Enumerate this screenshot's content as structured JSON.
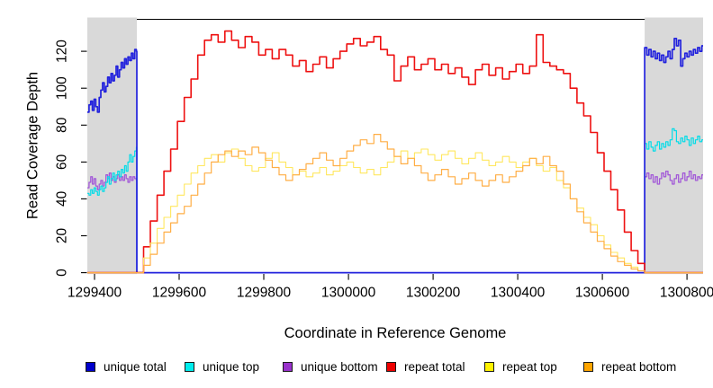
{
  "chart_data": {
    "type": "line",
    "title": "",
    "xlabel": "Coordinate in Reference Genome",
    "ylabel": "Read Coverage Depth",
    "xlim": [
      1299383,
      1300838
    ],
    "ylim": [
      0,
      137.6
    ],
    "xticks": [
      1299400,
      1299600,
      1299800,
      1300000,
      1300200,
      1300400,
      1300600,
      1300800
    ],
    "yticks": [
      0,
      20,
      40,
      60,
      80,
      100,
      120
    ],
    "grid": false,
    "legend_position": "bottom",
    "background_color": "#ffffff",
    "masked_region_color": "#d9d9d9",
    "masked_regions": [
      [
        1299383,
        1299500
      ],
      [
        1300700,
        1300838
      ]
    ],
    "series": [
      {
        "name": "unique total",
        "line_color": "#2222dd",
        "legend_color": "#0000cc",
        "segments": [
          {
            "x0": 1299383,
            "dx": 4,
            "v": [
              87,
              91,
              93,
              88,
              94,
              90,
              87,
              95,
              99,
              103,
              98,
              101,
              106,
              103,
              108,
              104,
              107,
              112,
              106,
              110,
              114,
              111,
              116,
              113,
              117,
              115,
              119,
              116,
              121,
              120
            ]
          },
          {
            "x0": 1299500,
            "dx": 1200,
            "v": [
              0,
              0
            ]
          },
          {
            "x0": 1300700,
            "dx": 5,
            "v": [
              122,
              118,
              121,
              117,
              120,
              116,
              119,
              115,
              118,
              114,
              117,
              120,
              116,
              121,
              127,
              123,
              126,
              112,
              116,
              119,
              117,
              120,
              118,
              121,
              119,
              122,
              120,
              123
            ]
          }
        ]
      },
      {
        "name": "unique top",
        "line_color": "#00dce8",
        "legend_color": "#00eeee",
        "segments": [
          {
            "x0": 1299383,
            "dx": 4,
            "v": [
              43,
              42,
              45,
              43,
              46,
              44,
              42,
              45,
              47,
              44,
              46,
              49,
              52,
              48,
              51,
              54,
              50,
              53,
              55,
              52,
              56,
              54,
              58,
              55,
              60,
              64,
              60,
              63,
              66,
              68
            ]
          },
          {
            "x0": 1299500,
            "dx": 1200,
            "v": [
              0,
              0
            ]
          },
          {
            "x0": 1300700,
            "dx": 5,
            "v": [
              70,
              67,
              71,
              68,
              66,
              69,
              71,
              67,
              70,
              68,
              71,
              69,
              72,
              78,
              77,
              71,
              70,
              73,
              71,
              74,
              72,
              69,
              73,
              70,
              72,
              74,
              71,
              72
            ]
          }
        ]
      },
      {
        "name": "unique bottom",
        "line_color": "#a259d8",
        "legend_color": "#9932cc",
        "segments": [
          {
            "x0": 1299383,
            "dx": 4,
            "v": [
              46,
              49,
              52,
              48,
              51,
              47,
              45,
              48,
              50,
              47,
              49,
              53,
              51,
              54,
              50,
              52,
              49,
              51,
              53,
              50,
              52,
              50,
              53,
              51,
              49,
              52,
              50,
              52,
              51,
              50
            ]
          },
          {
            "x0": 1299500,
            "dx": 1200,
            "v": [
              0,
              0
            ]
          },
          {
            "x0": 1300700,
            "dx": 5,
            "v": [
              52,
              54,
              51,
              53,
              49,
              52,
              48,
              51,
              54,
              52,
              55,
              53,
              50,
              48,
              51,
              53,
              49,
              51,
              54,
              50,
              52,
              55,
              51,
              53,
              50,
              52,
              51,
              53
            ]
          }
        ]
      },
      {
        "name": "repeat total",
        "line_color": "#ee1111",
        "legend_color": "#ee0000",
        "segments": [
          {
            "x0": 1299383,
            "dx": 117,
            "v": [
              0,
              0
            ]
          },
          {
            "x0": 1299500,
            "dx": 16,
            "v": [
              0,
              14,
              28,
              42,
              55,
              67,
              82,
              95,
              105,
              118,
              126,
              129,
              125,
              131,
              126,
              122,
              128,
              125,
              118,
              121,
              116,
              121,
              118,
              112,
              115,
              109,
              113,
              117,
              111,
              116,
              120,
              124,
              127,
              123,
              125,
              128,
              121,
              118,
              104,
              112,
              117,
              110,
              113,
              116,
              110,
              113,
              108,
              111,
              106,
              102,
              110,
              113,
              107,
              111,
              105,
              109,
              113,
              108,
              112,
              129,
              114,
              112,
              110,
              108,
              100,
              92,
              85,
              76,
              65,
              55,
              45,
              34,
              22,
              12,
              5,
              0
            ]
          },
          {
            "x0": 1300700,
            "dx": 138,
            "v": [
              0,
              0
            ]
          }
        ]
      },
      {
        "name": "repeat top",
        "line_color": "#ffe75e",
        "legend_color": "#fff200",
        "segments": [
          {
            "x0": 1299383,
            "dx": 117,
            "v": [
              0,
              0
            ]
          },
          {
            "x0": 1299500,
            "dx": 16,
            "v": [
              0,
              8,
              16,
              24,
              30,
              36,
              42,
              48,
              54,
              58,
              62,
              64,
              60,
              65,
              67,
              62,
              58,
              55,
              57,
              62,
              65,
              60,
              57,
              53,
              55,
              52,
              54,
              57,
              53,
              55,
              58,
              60,
              57,
              54,
              56,
              53,
              57,
              60,
              63,
              66,
              62,
              65,
              67,
              64,
              61,
              64,
              66,
              62,
              59,
              62,
              65,
              61,
              58,
              60,
              63,
              60,
              57,
              60,
              62,
              58,
              55,
              57,
              50,
              46,
              40,
              35,
              30,
              26,
              20,
              15,
              11,
              8,
              5,
              3,
              1,
              0
            ]
          },
          {
            "x0": 1300700,
            "dx": 138,
            "v": [
              0,
              0
            ]
          }
        ]
      },
      {
        "name": "repeat bottom",
        "line_color": "#ffae45",
        "legend_color": "#ffa500",
        "segments": [
          {
            "x0": 1299383,
            "dx": 117,
            "v": [
              0,
              0
            ]
          },
          {
            "x0": 1299500,
            "dx": 16,
            "v": [
              0,
              4,
              10,
              16,
              22,
              27,
              32,
              36,
              42,
              48,
              54,
              60,
              64,
              66,
              63,
              66,
              64,
              68,
              65,
              61,
              57,
              53,
              50,
              53,
              56,
              59,
              62,
              65,
              61,
              58,
              62,
              66,
              69,
              72,
              70,
              75,
              71,
              67,
              63,
              59,
              62,
              58,
              54,
              50,
              53,
              56,
              52,
              48,
              51,
              54,
              50,
              47,
              50,
              53,
              49,
              52,
              55,
              58,
              62,
              59,
              63,
              58,
              55,
              48,
              40,
              33,
              27,
              22,
              17,
              13,
              9,
              6,
              4,
              2,
              1,
              0
            ]
          },
          {
            "x0": 1300700,
            "dx": 138,
            "v": [
              0,
              0
            ]
          }
        ]
      }
    ]
  }
}
